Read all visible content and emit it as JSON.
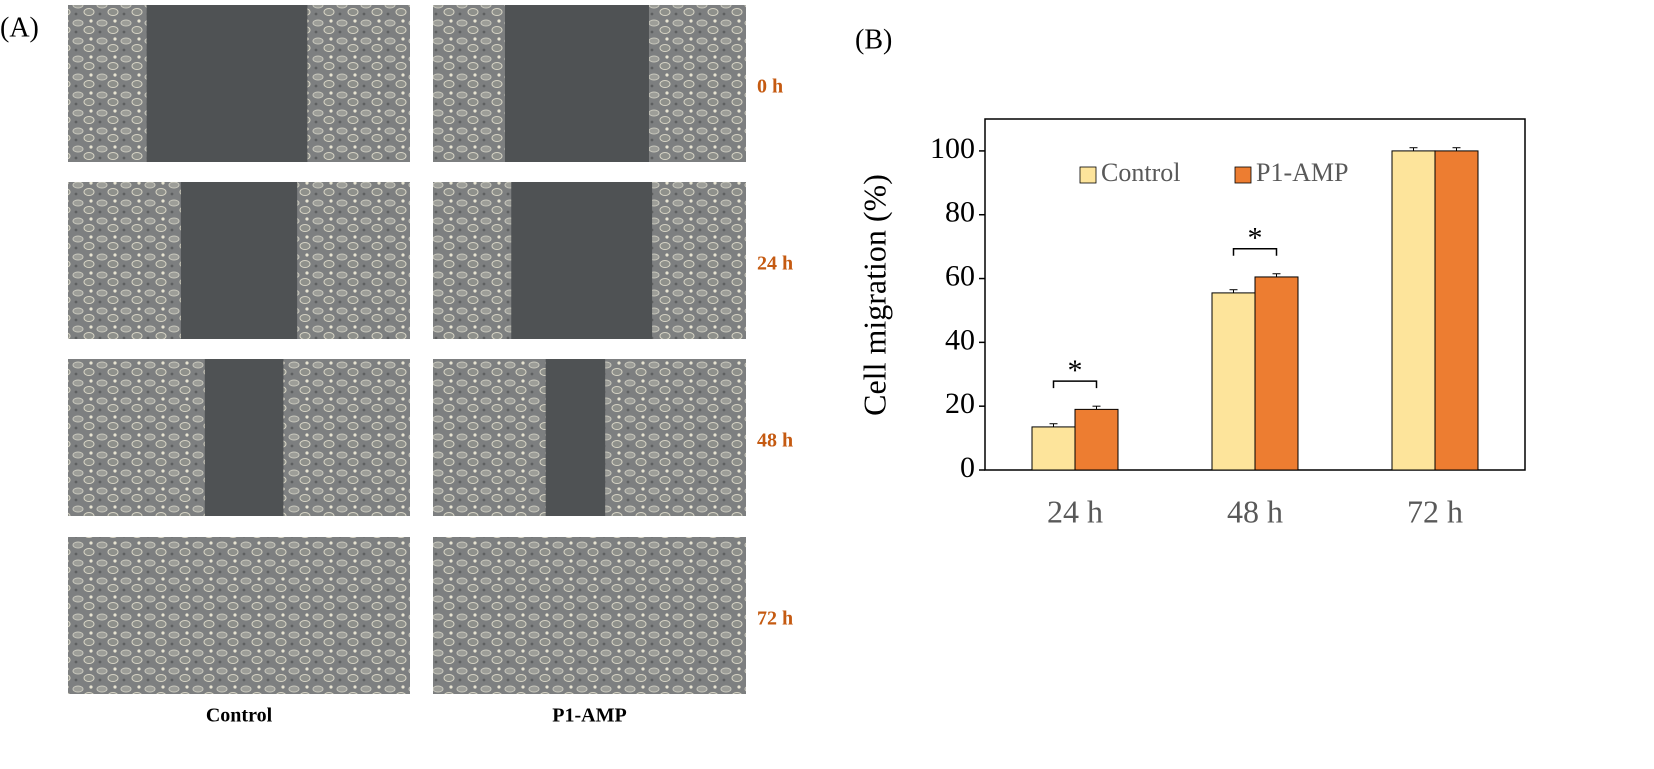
{
  "panel_a": {
    "label": "(A)",
    "rows": [
      "0 h",
      "24 h",
      "48 h",
      "72 h"
    ],
    "columns": [
      "Control",
      "P1-AMP"
    ]
  },
  "chart_data": {
    "type": "bar",
    "panel_label": "(B)",
    "y_label": "Cell migration (%)",
    "categories": [
      "24 h",
      "48 h",
      "72 h"
    ],
    "series": [
      {
        "name": "Control",
        "color": "#fde49b",
        "values": [
          13.5,
          55.5,
          100
        ],
        "errors": [
          1,
          1,
          1
        ]
      },
      {
        "name": "P1-AMP",
        "color": "#ed7d31",
        "values": [
          19,
          60.5,
          100
        ],
        "errors": [
          1,
          1,
          1
        ]
      }
    ],
    "ylim": [
      0,
      110
    ],
    "yticks": [
      0,
      20,
      40,
      60,
      80,
      100
    ],
    "legend": "top",
    "annotations": [
      {
        "text": "*",
        "category": "24 h"
      },
      {
        "text": "*",
        "category": "48 h"
      }
    ]
  }
}
